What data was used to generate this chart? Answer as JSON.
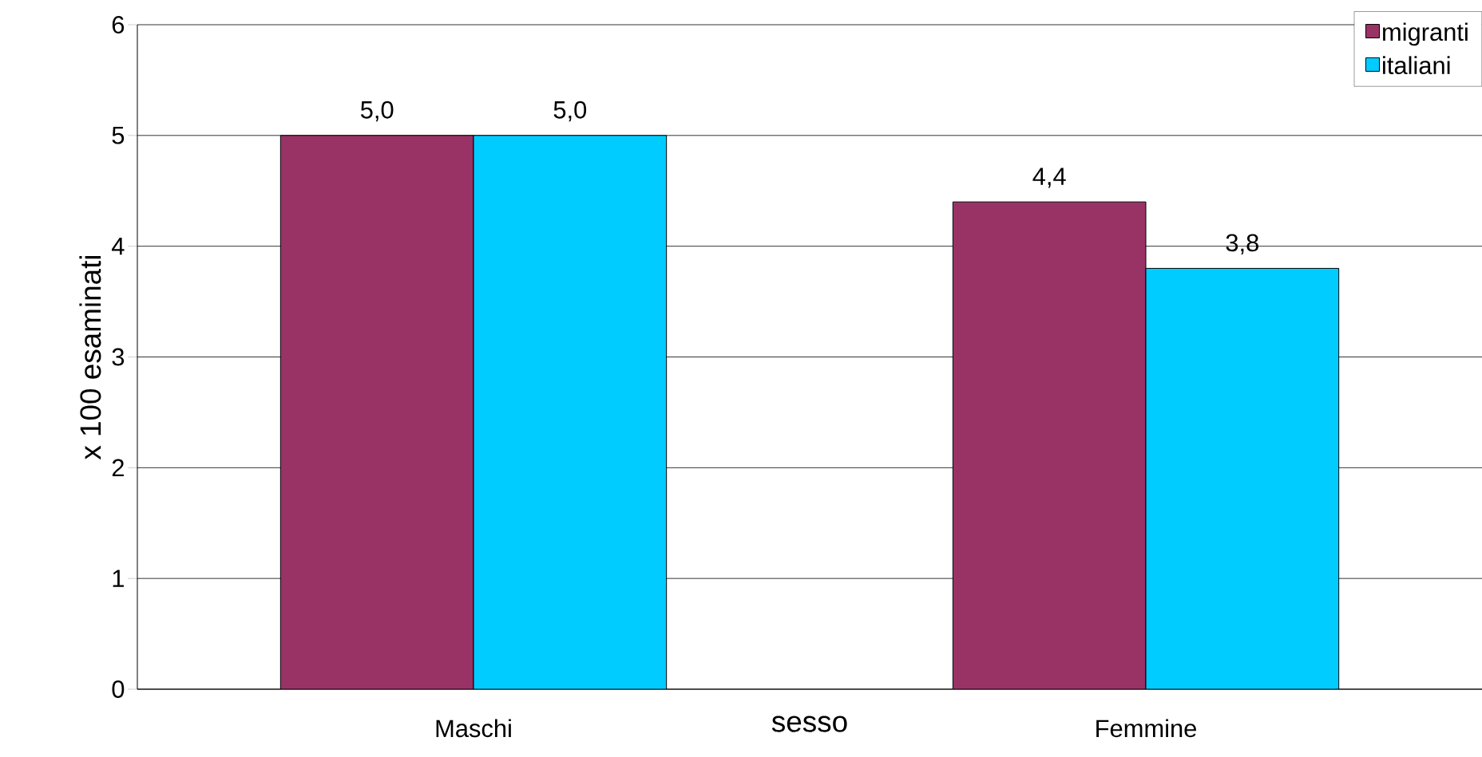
{
  "chart_data": {
    "type": "bar",
    "xlabel": "sesso",
    "ylabel": "x 100 esaminati",
    "categories": [
      "Maschi",
      "Femmine"
    ],
    "series": [
      {
        "name": "migranti",
        "color": "#993366",
        "values": [
          5.0,
          4.4
        ],
        "value_labels": [
          "5,0",
          "4,4"
        ]
      },
      {
        "name": "italiani",
        "color": "#00ccff",
        "values": [
          5.0,
          3.8
        ],
        "value_labels": [
          "5,0",
          "3,8"
        ]
      }
    ],
    "ylim": [
      0,
      6
    ],
    "yticks": [
      0,
      1,
      2,
      3,
      4,
      5,
      6
    ],
    "grid": "y",
    "legend": "top right"
  }
}
